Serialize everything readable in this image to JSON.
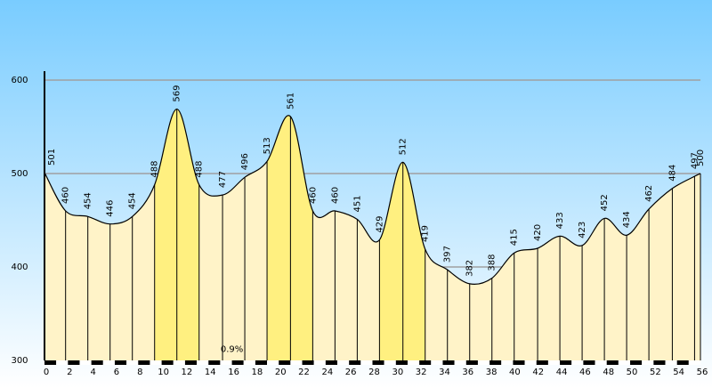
{
  "chart_data": {
    "type": "elevation_profile",
    "x": [
      0,
      1.8,
      3.7,
      5.6,
      7.5,
      9.4,
      11.3,
      13.2,
      15.2,
      17.1,
      19.0,
      21.0,
      22.9,
      24.8,
      26.7,
      28.6,
      30.6,
      32.5,
      34.4,
      36.3,
      38.2,
      40.1,
      42.1,
      44.0,
      45.9,
      47.8,
      49.7,
      51.6,
      53.6,
      55.5,
      56
    ],
    "values": [
      501,
      460,
      454,
      446,
      454,
      488,
      569,
      488,
      477,
      496,
      513,
      561,
      460,
      460,
      451,
      429,
      512,
      419,
      397,
      382,
      388,
      415,
      420,
      433,
      423,
      452,
      434,
      462,
      484,
      497,
      500
    ],
    "fill_colors": [
      "#fff3c8",
      "#fff3c8",
      "#fff3c8",
      "#fff3c8",
      "#fff3c8",
      "#fff080",
      "#fff080",
      "#fff3c8",
      "#fff3c8",
      "#fff3c8",
      "#fff080",
      "#fff080",
      "#fff3c8",
      "#fff3c8",
      "#fff3c8",
      "#fff080",
      "#fff080",
      "#fff3c8",
      "#fff3c8",
      "#fff3c8",
      "#fff3c8",
      "#fff3c8",
      "#fff3c8",
      "#fff3c8",
      "#fff3c8",
      "#fff3c8",
      "#fff3c8",
      "#fff3c8",
      "#fff3c8",
      "#fff3c8"
    ],
    "annotation": {
      "text": "0.9%",
      "x": 16,
      "y": 312
    },
    "xlim": [
      0,
      56
    ],
    "xticks": [
      0,
      2,
      4,
      6,
      8,
      10,
      12,
      14,
      16,
      18,
      20,
      22,
      24,
      26,
      28,
      30,
      32,
      34,
      36,
      38,
      40,
      42,
      44,
      46,
      48,
      50,
      52,
      54,
      56
    ],
    "ylim": [
      300,
      600
    ],
    "yticks": [
      300,
      400,
      500,
      600
    ],
    "grid": true
  }
}
